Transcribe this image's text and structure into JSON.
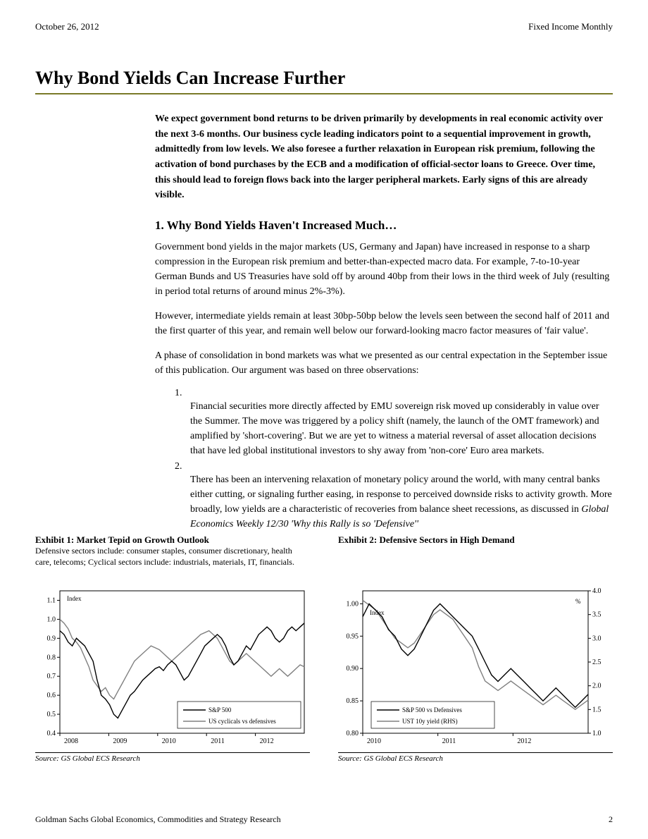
{
  "header": {
    "date": "October 26, 2012",
    "publication": "Fixed Income Monthly"
  },
  "title": "Why Bond Yields Can Increase Further",
  "intro": "We expect government bond returns to be driven primarily by developments in real economic activity over the next 3-6 months. Our business cycle leading indicators point to a sequential improvement in growth, admittedly from low levels. We also foresee a further relaxation in European risk premium, following the activation of bond purchases by the ECB and a modification of official-sector loans to Greece. Over time, this should lead to foreign flows back into the larger peripheral markets. Early signs of this are already visible.",
  "section1_heading": "1. Why Bond Yields Haven't Increased Much…",
  "para1": "Government bond yields in the major markets (US, Germany and Japan) have increased in response to a sharp compression in the European risk premium and better-than-expected macro data. For example, 7-to-10-year German Bunds and US Treasuries have sold off by around 40bp from their lows in the third week of July (resulting in period total returns of around minus 2%-3%).",
  "para2": "However, intermediate yields remain at least 30bp-50bp below the levels seen between the second half of 2011 and the first quarter of this year, and remain well below our forward-looking macro factor measures of 'fair value'.",
  "para3": "A phase of consolidation in bond markets was what we presented as our central expectation in the September issue of this publication. Our argument was based on three observations:",
  "list_n1": "1.",
  "list_item1": "Financial securities more directly affected by EMU sovereign risk moved up considerably in value over the Summer. The move was triggered by a policy shift (namely, the launch of the OMT framework) and amplified by 'short-covering'. But we are yet to witness a material reversal of asset allocation decisions that have led global institutional investors to shy away from 'non-core' Euro area markets.",
  "list_n2": "2.",
  "list_item2_a": "There has been an intervening relaxation of monetary policy around the world, with many central banks either cutting, or signaling further easing, in response to perceived downside risks to activity growth. More broadly, low yields are a characteristic of recoveries from balance sheet recessions, as discussed in ",
  "list_item2_b": "Global Economics Weekly 12/30 'Why this Rally is so 'Defensive''",
  "exhibit1": {
    "title": "Exhibit 1: Market Tepid on Growth Outlook",
    "subtitle": "Defensive sectors include: consumer staples, consumer discretionary, health care, telecoms; Cyclical sectors include: industrials, materials, IT, financials.",
    "source": "Source: GS Global ECS Research",
    "type": "line",
    "index_label": "Index",
    "y_ticks": [
      0.4,
      0.5,
      0.6,
      0.7,
      0.8,
      0.9,
      1.0,
      1.1
    ],
    "x_ticks": [
      "2008",
      "2009",
      "2010",
      "2011",
      "2012"
    ],
    "ylim": [
      0.4,
      1.15
    ],
    "legend": [
      "S&P 500",
      "US cyclicals vs defensives"
    ],
    "colors": {
      "sp500": "#000000",
      "cyc_def": "#808080",
      "border": "#000000",
      "bg": "#ffffff"
    },
    "line_width": 1.4,
    "sp500": [
      0.94,
      0.92,
      0.88,
      0.86,
      0.9,
      0.88,
      0.86,
      0.82,
      0.78,
      0.68,
      0.6,
      0.58,
      0.55,
      0.5,
      0.48,
      0.52,
      0.56,
      0.6,
      0.62,
      0.65,
      0.68,
      0.7,
      0.72,
      0.74,
      0.75,
      0.73,
      0.76,
      0.78,
      0.76,
      0.72,
      0.68,
      0.7,
      0.74,
      0.78,
      0.82,
      0.86,
      0.88,
      0.9,
      0.92,
      0.9,
      0.86,
      0.8,
      0.76,
      0.78,
      0.82,
      0.86,
      0.84,
      0.88,
      0.92,
      0.94,
      0.96,
      0.94,
      0.9,
      0.88,
      0.9,
      0.94,
      0.96,
      0.94,
      0.96,
      0.98
    ],
    "cyc_def": [
      1.0,
      0.98,
      0.95,
      0.9,
      0.88,
      0.85,
      0.8,
      0.75,
      0.68,
      0.65,
      0.62,
      0.64,
      0.6,
      0.58,
      0.62,
      0.66,
      0.7,
      0.74,
      0.78,
      0.8,
      0.82,
      0.84,
      0.86,
      0.85,
      0.84,
      0.82,
      0.8,
      0.78,
      0.8,
      0.82,
      0.84,
      0.86,
      0.88,
      0.9,
      0.92,
      0.93,
      0.94,
      0.92,
      0.9,
      0.86,
      0.82,
      0.78,
      0.76,
      0.78,
      0.8,
      0.82,
      0.8,
      0.78,
      0.76,
      0.74,
      0.72,
      0.7,
      0.72,
      0.74,
      0.72,
      0.7,
      0.72,
      0.74,
      0.76,
      0.75
    ]
  },
  "exhibit2": {
    "title": "Exhibit 2: Defensive Sectors in High Demand",
    "source": "Source: GS Global ECS Research",
    "type": "line",
    "index_label": "Index",
    "pct_label": "%",
    "y_left_ticks": [
      0.8,
      0.85,
      0.9,
      0.95,
      1.0
    ],
    "y_right_ticks": [
      1.0,
      1.5,
      2.0,
      2.5,
      3.0,
      3.5,
      4.0
    ],
    "x_ticks": [
      "2010",
      "2011",
      "2012"
    ],
    "ylim_left": [
      0.8,
      1.02
    ],
    "ylim_right": [
      1.0,
      4.0
    ],
    "legend": [
      "S&P 500 vs Defensives",
      "UST 10y yield (RHS)"
    ],
    "colors": {
      "spdef": "#000000",
      "ust": "#808080",
      "border": "#000000",
      "bg": "#ffffff"
    },
    "line_width": 1.4,
    "spdef": [
      0.98,
      1.0,
      0.99,
      0.98,
      0.96,
      0.95,
      0.93,
      0.92,
      0.93,
      0.95,
      0.97,
      0.99,
      1.0,
      0.99,
      0.98,
      0.97,
      0.96,
      0.95,
      0.93,
      0.91,
      0.89,
      0.88,
      0.89,
      0.9,
      0.89,
      0.88,
      0.87,
      0.86,
      0.85,
      0.86,
      0.87,
      0.86,
      0.85,
      0.84,
      0.85,
      0.86
    ],
    "ust": [
      3.8,
      3.7,
      3.6,
      3.4,
      3.2,
      3.0,
      2.9,
      2.8,
      2.9,
      3.1,
      3.3,
      3.5,
      3.6,
      3.5,
      3.4,
      3.2,
      3.0,
      2.8,
      2.4,
      2.1,
      2.0,
      1.9,
      2.0,
      2.1,
      2.0,
      1.9,
      1.8,
      1.7,
      1.6,
      1.7,
      1.8,
      1.7,
      1.6,
      1.5,
      1.6,
      1.7
    ]
  },
  "footer": {
    "left": "Goldman Sachs Global Economics, Commodities and Strategy Research",
    "page": "2"
  }
}
